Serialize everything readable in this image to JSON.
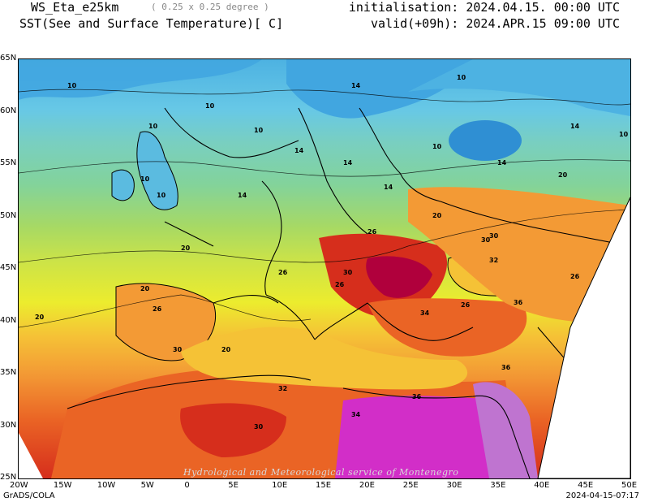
{
  "header": {
    "model": "WS_Eta_e25km",
    "resolution": "( 0.25 x 0.25 degree )",
    "variable": "SST(See and Surface Temperature)[ C]",
    "initialisation": "initialisation: 2024.04.15. 00:00 UTC",
    "valid": "valid(+09h): 2024.APR.15 09:00 UTC"
  },
  "map": {
    "x_ticks": [
      "20W",
      "15W",
      "10W",
      "5W",
      "0",
      "5E",
      "10E",
      "15E",
      "20E",
      "25E",
      "30E",
      "35E",
      "40E",
      "45E",
      "50E"
    ],
    "y_ticks": [
      "65N",
      "60N",
      "55N",
      "50N",
      "45N",
      "40N",
      "35N",
      "30N",
      "25N"
    ],
    "contour_labels": [
      "10",
      "10",
      "10",
      "10",
      "10",
      "10",
      "10",
      "10",
      "10",
      "14",
      "14",
      "14",
      "14",
      "14",
      "14",
      "14",
      "20",
      "20",
      "20",
      "20",
      "20",
      "20",
      "26",
      "26",
      "26",
      "26",
      "26",
      "26",
      "30",
      "30",
      "30",
      "30",
      "30",
      "32",
      "32",
      "32",
      "34",
      "34",
      "36",
      "36",
      "36"
    ],
    "palette": [
      "#41a6e0",
      "#67c8e6",
      "#79cfc0",
      "#83d39a",
      "#a7d964",
      "#cbe348",
      "#ecec2e",
      "#f5c236",
      "#f39a35",
      "#ea6425",
      "#d62e1c",
      "#b0003c",
      "#d22ec8",
      "#bf74d0"
    ]
  },
  "footer": {
    "software": "GrADS/COLA",
    "timestamp": "2024-04-15-07:17",
    "watermark": "Hydrological and Meteorological service of Montenegro"
  }
}
